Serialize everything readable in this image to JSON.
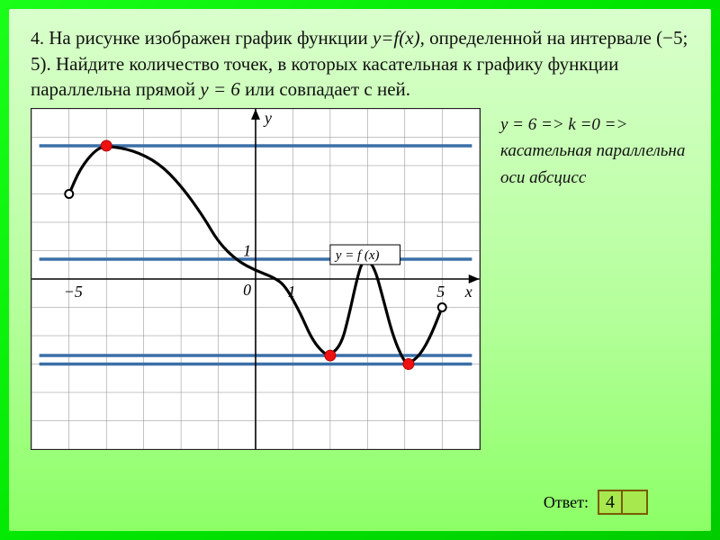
{
  "problem": {
    "number": "4.",
    "text_before": " На рисунке изображен график функции ",
    "func": "y=f(x)",
    "text_mid1": ", определенной на интервале ",
    "interval": "(−5; 5)",
    "text_mid2": ". Найдите количество точек, в которых касательная к графику функции параллельна прямой ",
    "line_eq": "y = 6",
    "text_end": " или совпадает с ней."
  },
  "explain": {
    "l1": "у = 6 => k =0 =>",
    "l2": "касательная  параллельна",
    "l3": "оси абсцисс"
  },
  "answer": {
    "label": "Ответ:",
    "value": "4"
  },
  "chart": {
    "type": "line",
    "xlim": [
      -6,
      6
    ],
    "ylim": [
      -6,
      6
    ],
    "xtick_step": 1,
    "ytick_step": 1,
    "grid_color": "#888888",
    "background_color": "#ffffff",
    "axis_color": "#000000",
    "x_label": "x",
    "y_label": "y",
    "tick_labels_x": [
      {
        "v": -5,
        "t": "−5"
      },
      {
        "v": 5,
        "t": "5"
      },
      {
        "v": 1,
        "t": "1"
      }
    ],
    "tick_labels_y": [
      {
        "v": 1,
        "t": "1"
      }
    ],
    "origin_label": "0",
    "func_label": "y = f (x)",
    "curve_color": "#000000",
    "curve_width": 3.2,
    "curve_points": [
      [
        -5,
        3
      ],
      [
        -4.7,
        3.9
      ],
      [
        -4.3,
        4.55
      ],
      [
        -4,
        4.7
      ],
      [
        -3.3,
        4.55
      ],
      [
        -2.6,
        4.1
      ],
      [
        -2,
        3.3
      ],
      [
        -1.4,
        2.2
      ],
      [
        -1,
        1.3
      ],
      [
        -0.5,
        0.65
      ],
      [
        0,
        0.3
      ],
      [
        0.5,
        0.05
      ],
      [
        0.8,
        -0.25
      ],
      [
        1.2,
        -1.2
      ],
      [
        1.5,
        -2.1
      ],
      [
        1.8,
        -2.6
      ],
      [
        2,
        -2.7
      ],
      [
        2.3,
        -2.3
      ],
      [
        2.5,
        -1.3
      ],
      [
        2.7,
        -0.1
      ],
      [
        2.85,
        0.6
      ],
      [
        3,
        0.7
      ],
      [
        3.2,
        0.35
      ],
      [
        3.4,
        -0.6
      ],
      [
        3.7,
        -2.1
      ],
      [
        4,
        -2.95
      ],
      [
        4.1,
        -3
      ],
      [
        4.4,
        -2.7
      ],
      [
        4.7,
        -2.0
      ],
      [
        5,
        -1
      ]
    ],
    "open_endpoints": [
      [
        -5,
        3
      ],
      [
        5,
        -1
      ]
    ],
    "horizontal_tangent_lines": [
      {
        "y": 4.7,
        "x1": -5.8,
        "x2": 5.8
      },
      {
        "y": 0.7,
        "x1": -5.8,
        "x2": 5.8
      },
      {
        "y": -2.7,
        "x1": -5.8,
        "x2": 5.8
      },
      {
        "y": -3.0,
        "x1": -5.8,
        "x2": 5.8
      }
    ],
    "tangent_color": "#3b6fa8",
    "tangent_width": 3.5,
    "red_dots": [
      [
        -4,
        4.7
      ],
      [
        2,
        -2.7
      ],
      [
        3,
        0.7
      ],
      [
        4.1,
        -3
      ]
    ],
    "red_dot_color": "#ee1111",
    "red_dot_r": 6,
    "font_size": 18
  }
}
